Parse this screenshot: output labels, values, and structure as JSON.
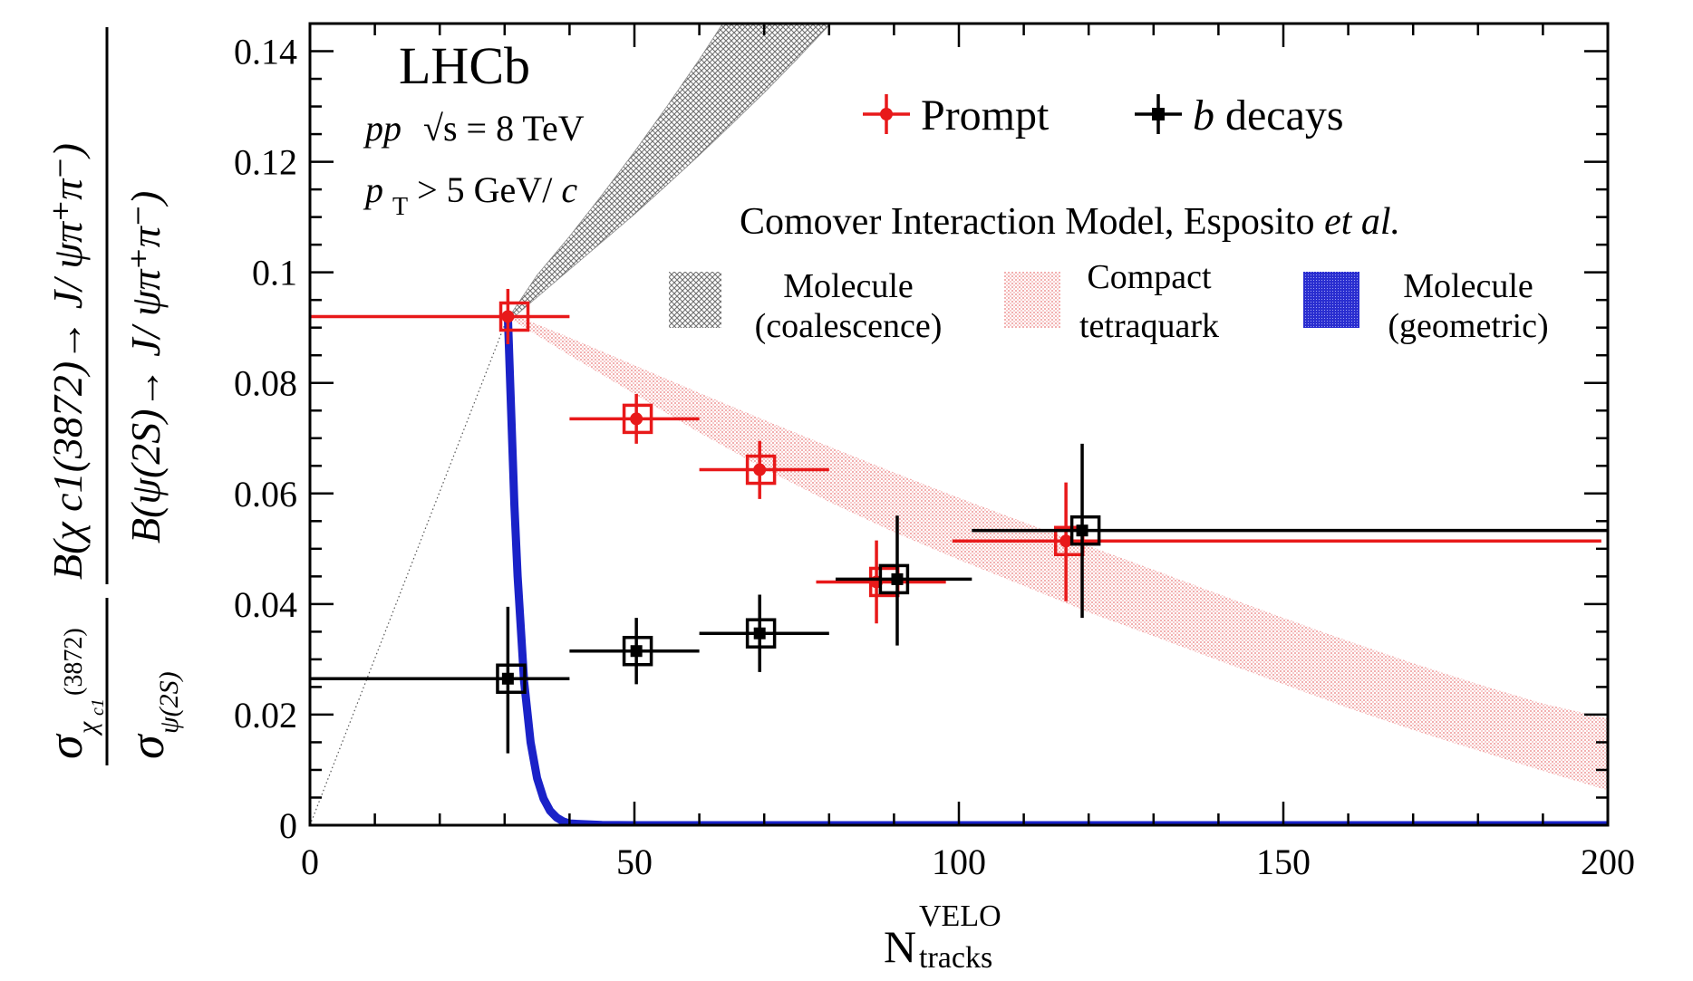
{
  "chart_data": {
    "type": "scatter",
    "experiment": "LHCb",
    "conditions": {
      "line1_italic": "pp",
      "line1_rest": "√s = 8 TeV",
      "line2_p": "p",
      "line2_sub": "T",
      "line2_rest": " > 5 GeV/",
      "line2_c": "c"
    },
    "xlabel": {
      "main": "N",
      "sup": "VELO",
      "sub": "tracks"
    },
    "ylabel": {
      "sigma_num_sub": "χ",
      "sigma_num_subsub": "c1",
      "sigma_num_sup": "(3872)",
      "sigma_den_sub": "ψ(2S)",
      "br_num": "B(χ c1(3872)→ J/ ψπ⁺π⁻)",
      "br_den": "B(ψ(2S)→ J/ ψπ⁺π⁻)"
    },
    "xlim": [
      0,
      200
    ],
    "ylim": [
      0,
      0.145
    ],
    "xticks": [
      "0",
      "50",
      "100",
      "150",
      "200"
    ],
    "yticks": [
      "0",
      "0.02",
      "0.04",
      "0.06",
      "0.08",
      "0.1",
      "0.12",
      "0.14"
    ],
    "xtick_values": [
      0,
      50,
      100,
      150,
      200
    ],
    "ytick_values": [
      0,
      0.02,
      0.04,
      0.06,
      0.08,
      0.1,
      0.12,
      0.14
    ],
    "legend_top": {
      "prompt": "Prompt",
      "b_italic": "b",
      "b_rest": " decays"
    },
    "model_title": {
      "main": "Comover Interaction Model, Esposito ",
      "italic": "et al."
    },
    "model_legend": [
      {
        "line1": "Molecule",
        "line2": "(coalescence)"
      },
      {
        "line1": "Compact",
        "line2": "tetraquark"
      },
      {
        "line1": "Molecule",
        "line2": "(geometric)"
      }
    ],
    "colors": {
      "prompt": "#e8191a",
      "b_decays": "#000000",
      "molecule_coalescence": "#808080",
      "compact_tetraquark": "#f4b8b8",
      "molecule_geometric": "#1a22c8"
    },
    "series": [
      {
        "name": "Prompt",
        "points": [
          {
            "x": 30.5,
            "xlo": 0,
            "xhi": 40,
            "y": 0.092,
            "ylo": 0.087,
            "yhi": 0.097,
            "box_x": 31.5
          },
          {
            "x": 50.3,
            "xlo": 40,
            "xhi": 60,
            "y": 0.0735,
            "ylo": 0.069,
            "yhi": 0.078,
            "box_x": 50.5
          },
          {
            "x": 69.3,
            "xlo": 60,
            "xhi": 80,
            "y": 0.0643,
            "ylo": 0.059,
            "yhi": 0.0695,
            "box_x": 69.5
          },
          {
            "x": 87.3,
            "xlo": 78,
            "xhi": 98,
            "y": 0.044,
            "ylo": 0.0365,
            "yhi": 0.0515,
            "box_x": 88.5
          },
          {
            "x": 116.5,
            "xlo": 99,
            "xhi": 199,
            "y": 0.0514,
            "ylo": 0.0405,
            "yhi": 0.062,
            "box_x": 117
          }
        ]
      },
      {
        "name": "b decays",
        "points": [
          {
            "x": 30.5,
            "xlo": 0,
            "xhi": 40,
            "y": 0.0265,
            "ylo": 0.013,
            "yhi": 0.0395,
            "box_x": 31
          },
          {
            "x": 50.3,
            "xlo": 40,
            "xhi": 60,
            "y": 0.0315,
            "ylo": 0.0255,
            "yhi": 0.0375,
            "box_x": 50.5
          },
          {
            "x": 69.3,
            "xlo": 60,
            "xhi": 80,
            "y": 0.0347,
            "ylo": 0.0277,
            "yhi": 0.0417,
            "box_x": 69.5
          },
          {
            "x": 90.5,
            "xlo": 81,
            "xhi": 102,
            "y": 0.0445,
            "ylo": 0.0325,
            "yhi": 0.056,
            "box_x": 90
          },
          {
            "x": 119,
            "xlo": 102,
            "xhi": 200,
            "y": 0.0533,
            "ylo": 0.0375,
            "yhi": 0.069,
            "box_x": 119.5
          }
        ]
      }
    ],
    "bands": {
      "molecule_coalescence": {
        "x": [
          31,
          35,
          40,
          45,
          50,
          55,
          60,
          65,
          70,
          75,
          80,
          84
        ],
        "lo": [
          0.0915,
          0.0955,
          0.1005,
          0.1055,
          0.1105,
          0.1158,
          0.1212,
          0.1268,
          0.1325,
          0.1385,
          0.1447,
          0.15
        ],
        "hi": [
          0.0925,
          0.0995,
          0.1065,
          0.114,
          0.1218,
          0.13,
          0.1385,
          0.1475,
          0.1568,
          0.1665,
          0.1765,
          0.185
        ]
      },
      "compact_tetraquark": {
        "x": [
          31,
          40,
          50,
          60,
          70,
          80,
          90,
          100,
          110,
          120,
          130,
          140,
          150,
          160,
          170,
          180,
          190,
          200
        ],
        "lo": [
          0.0915,
          0.085,
          0.078,
          0.071,
          0.0645,
          0.0585,
          0.053,
          0.048,
          0.0433,
          0.0385,
          0.0342,
          0.0298,
          0.0255,
          0.0212,
          0.0172,
          0.0135,
          0.0098,
          0.0063
        ],
        "hi": [
          0.0925,
          0.0882,
          0.0832,
          0.0782,
          0.0733,
          0.0685,
          0.0638,
          0.0592,
          0.0548,
          0.0505,
          0.0462,
          0.0418,
          0.0375,
          0.0333,
          0.0293,
          0.0255,
          0.022,
          0.0193
        ]
      },
      "molecule_geometric": {
        "x": [
          30.5,
          31,
          31.5,
          32,
          33,
          34,
          35,
          36,
          37,
          38,
          39,
          40,
          45,
          50,
          200
        ],
        "y": [
          0.092,
          0.075,
          0.058,
          0.045,
          0.026,
          0.015,
          0.0085,
          0.0048,
          0.0026,
          0.0014,
          0.0007,
          0.0003,
          5e-05,
          0,
          0
        ]
      }
    },
    "guide_line": {
      "x": [
        0,
        30.5
      ],
      "y": [
        0,
        0.092
      ]
    },
    "grid": false,
    "legend_position": "top-right"
  }
}
